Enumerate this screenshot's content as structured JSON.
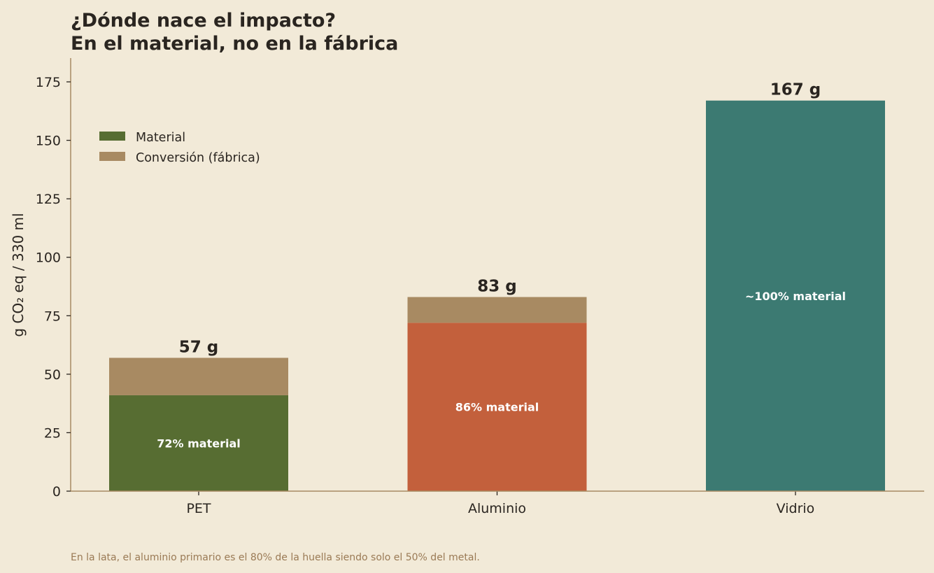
{
  "chart_data": {
    "type": "bar",
    "stacked": true,
    "title_lines": [
      "¿Dónde nace el impacto?",
      "En el material, no en la fábrica"
    ],
    "ylabel": "g CO₂ eq / 330 ml",
    "xlabel": "",
    "ylim": [
      0,
      185
    ],
    "yticks": [
      0,
      25,
      50,
      75,
      100,
      125,
      150,
      175
    ],
    "categories": [
      "PET",
      "Aluminio",
      "Vidrio"
    ],
    "series": [
      {
        "name": "Material",
        "values": [
          41,
          72,
          167
        ]
      },
      {
        "name": "Conversión (fábrica)",
        "values": [
          16,
          11,
          0
        ]
      }
    ],
    "bar_material_colors": [
      "#576d32",
      "#c3603c",
      "#3c7a72"
    ],
    "conversion_color": "#a88a62",
    "totals": [
      57,
      83,
      167
    ],
    "total_labels": [
      "57 g",
      "83 g",
      "167 g"
    ],
    "inner_labels": [
      "72% material",
      "86% material",
      "~100% material"
    ],
    "legend": {
      "placement": "upper-left",
      "entries": [
        {
          "label": "Material",
          "color": "#576d32"
        },
        {
          "label": "Conversión (fábrica)",
          "color": "#a88a62"
        }
      ]
    },
    "footnote": "En la lata, el aluminio primario es el 80% de la huella siendo solo el 50% del metal.",
    "grid": false,
    "axis_color": "#a88a62",
    "background": "#f2ead8"
  }
}
